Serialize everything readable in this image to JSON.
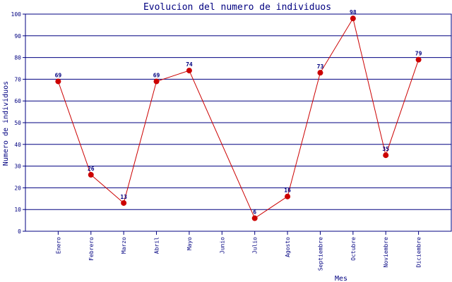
{
  "chart_data": {
    "type": "line",
    "title": "Evolucion del numero de individuos",
    "xlabel": "Mes",
    "ylabel": "Numero de individuos",
    "categories": [
      "Enero",
      "Febrero",
      "Marzo",
      "Abril",
      "Mayo",
      "Junio",
      "Julio",
      "Agosto",
      "Septiembre",
      "Octubre",
      "Noviembre",
      "Diciembre"
    ],
    "values": [
      69,
      26,
      13,
      69,
      74,
      null,
      6,
      16,
      73,
      98,
      35,
      79
    ],
    "value_labels": [
      "69",
      "26",
      "13",
      "69",
      "74",
      "",
      "6",
      "16",
      "73",
      "98",
      "35",
      "79"
    ],
    "ylim": [
      0,
      100
    ],
    "yticks": [
      0,
      10,
      20,
      30,
      40,
      50,
      60,
      70,
      80,
      90,
      100
    ],
    "ytick_labels": [
      "0",
      "10",
      "20",
      "30",
      "40",
      "50",
      "60",
      "70",
      "80",
      "90",
      "100"
    ],
    "grid": true,
    "line_color": "#cc0000",
    "marker_color": "#cc0000",
    "axis_color": "#000080"
  }
}
